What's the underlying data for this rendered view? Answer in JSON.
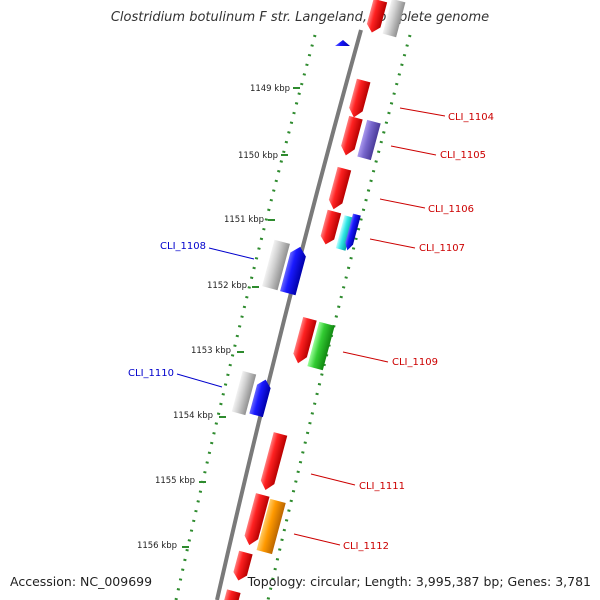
{
  "title": "Clostridium botulinum F str. Langeland, complete genome",
  "accession": "Accession: NC_009699",
  "topology": "Topology: circular; Length: 3,995,387 bp; Genes: 3,781",
  "kbp_labels": [
    "1149 kbp",
    "1150 kbp",
    "1151 kbp",
    "1152 kbp",
    "1153 kbp",
    "1154 kbp",
    "1155 kbp",
    "1156 kbp"
  ],
  "labels_right": [
    "CLI_1104",
    "CLI_1105",
    "CLI_1106",
    "CLI_1107",
    "CLI_1109",
    "CLI_1111",
    "CLI_1112"
  ],
  "labels_left": [
    "CLI_1108",
    "CLI_1110"
  ],
  "colors": {
    "backbone": "#808080",
    "tick": "#2e8b2e",
    "right_label": "#cc0000",
    "left_label": "#0000cc",
    "red": "#ee1111",
    "blue": "#1111ee",
    "gray": "#c8c8c8",
    "purple": "#7766cc",
    "cyan": "#22dddd",
    "green": "#33cc33",
    "orange": "#ff9900"
  }
}
